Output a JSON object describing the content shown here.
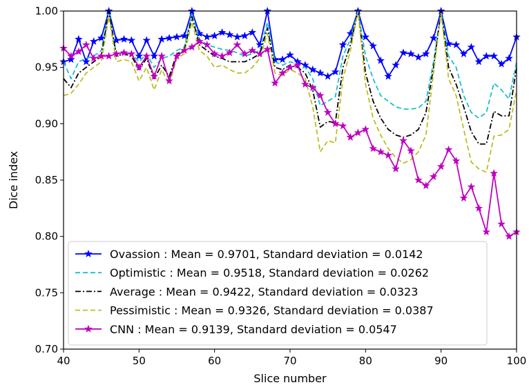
{
  "chart_data": {
    "type": "line",
    "xlabel": "Slice number",
    "ylabel": "Dice index",
    "xlim": [
      40,
      100
    ],
    "ylim": [
      0.7,
      1.0
    ],
    "xticks": [
      "40",
      "50",
      "60",
      "70",
      "80",
      "90",
      "100"
    ],
    "yticks": [
      "0.70",
      "0.75",
      "0.80",
      "0.85",
      "0.90",
      "0.95",
      "1.00"
    ],
    "grid": false,
    "legend_position": "lower-left",
    "x": [
      40,
      41,
      42,
      43,
      44,
      45,
      46,
      47,
      48,
      49,
      50,
      51,
      52,
      53,
      54,
      55,
      56,
      57,
      58,
      59,
      60,
      61,
      62,
      63,
      64,
      65,
      66,
      67,
      68,
      69,
      70,
      71,
      72,
      73,
      74,
      75,
      76,
      77,
      78,
      79,
      80,
      81,
      82,
      83,
      84,
      85,
      86,
      87,
      88,
      89,
      90,
      91,
      92,
      93,
      94,
      95,
      96,
      97,
      98,
      99,
      100
    ],
    "series": [
      {
        "name": "Ovassion : Mean = 0.9701, Standard deviation = 0.0142",
        "color": "#0000ff",
        "style": "solid",
        "marker": "star",
        "values": [
          0.955,
          0.957,
          0.975,
          0.955,
          0.973,
          0.976,
          1.0,
          0.974,
          0.975,
          0.974,
          0.96,
          0.974,
          0.96,
          0.975,
          0.976,
          0.977,
          0.978,
          1.0,
          0.98,
          0.977,
          0.978,
          0.981,
          0.979,
          0.977,
          0.978,
          0.981,
          0.97,
          1.0,
          0.957,
          0.957,
          0.961,
          0.955,
          0.952,
          0.948,
          0.945,
          0.942,
          0.946,
          0.97,
          0.98,
          1.0,
          0.977,
          0.969,
          0.956,
          0.942,
          0.952,
          0.963,
          0.962,
          0.959,
          0.962,
          0.976,
          1.0,
          0.971,
          0.97,
          0.962,
          0.968,
          0.955,
          0.96,
          0.96,
          0.953,
          0.958,
          0.977
        ]
      },
      {
        "name": "Optimistic : Mean = 0.9518, Standard deviation = 0.0262",
        "color": "#17becf",
        "style": "dashed",
        "marker": "none",
        "values": [
          0.955,
          0.94,
          0.955,
          0.958,
          0.96,
          0.965,
          1.0,
          0.962,
          0.964,
          0.962,
          0.955,
          0.962,
          0.95,
          0.958,
          0.96,
          0.965,
          0.968,
          0.998,
          0.975,
          0.97,
          0.968,
          0.966,
          0.965,
          0.963,
          0.96,
          0.962,
          0.965,
          0.99,
          0.955,
          0.952,
          0.955,
          0.953,
          0.95,
          0.94,
          0.916,
          0.92,
          0.924,
          0.96,
          0.975,
          1.0,
          0.96,
          0.94,
          0.925,
          0.92,
          0.915,
          0.913,
          0.913,
          0.914,
          0.92,
          0.955,
          1.0,
          0.96,
          0.95,
          0.925,
          0.91,
          0.905,
          0.91,
          0.936,
          0.93,
          0.922,
          0.955
        ]
      },
      {
        "name": "Average : Mean = 0.9422, Standard deviation = 0.0323",
        "color": "#000000",
        "style": "dashdot",
        "marker": "none",
        "values": [
          0.94,
          0.932,
          0.945,
          0.95,
          0.955,
          0.96,
          1.0,
          0.96,
          0.962,
          0.96,
          0.948,
          0.958,
          0.94,
          0.952,
          0.942,
          0.962,
          0.965,
          0.995,
          0.97,
          0.965,
          0.96,
          0.958,
          0.955,
          0.955,
          0.955,
          0.958,
          0.962,
          0.985,
          0.95,
          0.948,
          0.952,
          0.95,
          0.945,
          0.93,
          0.897,
          0.902,
          0.901,
          0.95,
          0.97,
          1.0,
          0.945,
          0.92,
          0.905,
          0.895,
          0.89,
          0.888,
          0.89,
          0.895,
          0.91,
          0.95,
          1.0,
          0.95,
          0.935,
          0.915,
          0.893,
          0.882,
          0.882,
          0.911,
          0.907,
          0.907,
          0.95
        ]
      },
      {
        "name": "Pessimistic : Mean = 0.9326, Standard deviation = 0.0387",
        "color": "#bcbd22",
        "style": "dashed",
        "marker": "none",
        "values": [
          0.925,
          0.927,
          0.935,
          0.945,
          0.95,
          0.955,
          0.995,
          0.955,
          0.957,
          0.955,
          0.938,
          0.95,
          0.93,
          0.948,
          0.935,
          0.958,
          0.962,
          0.99,
          0.965,
          0.96,
          0.95,
          0.952,
          0.948,
          0.945,
          0.945,
          0.95,
          0.958,
          0.98,
          0.945,
          0.943,
          0.948,
          0.945,
          0.94,
          0.915,
          0.875,
          0.885,
          0.883,
          0.94,
          0.965,
          1.0,
          0.935,
          0.905,
          0.89,
          0.878,
          0.87,
          0.865,
          0.868,
          0.875,
          0.89,
          0.945,
          0.998,
          0.94,
          0.925,
          0.895,
          0.866,
          0.86,
          0.857,
          0.889,
          0.89,
          0.895,
          0.93
        ]
      },
      {
        "name": "CNN : Mean = 0.9139, Standard deviation = 0.0547",
        "color": "#bf00bf",
        "style": "solid",
        "marker": "star",
        "values": [
          0.967,
          0.96,
          0.964,
          0.97,
          0.958,
          0.96,
          0.96,
          0.962,
          0.963,
          0.962,
          0.95,
          0.96,
          0.942,
          0.96,
          0.938,
          0.96,
          0.965,
          0.968,
          0.973,
          0.97,
          0.962,
          0.96,
          0.963,
          0.97,
          0.962,
          0.965,
          0.962,
          0.966,
          0.936,
          0.945,
          0.95,
          0.952,
          0.935,
          0.932,
          0.925,
          0.91,
          0.9,
          0.898,
          0.888,
          0.892,
          0.895,
          0.878,
          0.875,
          0.872,
          0.86,
          0.885,
          0.876,
          0.85,
          0.845,
          0.853,
          0.862,
          0.877,
          0.867,
          0.834,
          0.844,
          0.825,
          0.804,
          0.856,
          0.811,
          0.8,
          0.804
        ]
      }
    ]
  }
}
